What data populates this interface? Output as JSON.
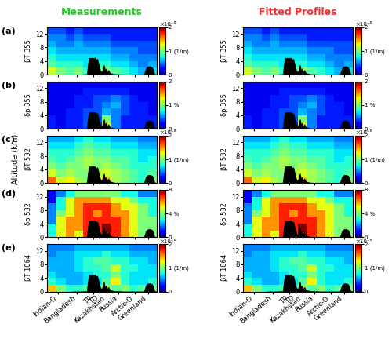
{
  "chart_data": {
    "type": "heatmap",
    "column_titles": [
      {
        "text": "Measurements",
        "color": "#22cc22"
      },
      {
        "text": "Fitted Profiles",
        "color": "#ff2a2a"
      }
    ],
    "ylabel": "Altitude (km)",
    "xlim": [
      0,
      100
    ],
    "xticks": [
      {
        "value": 10,
        "label": "Indian-O"
      },
      {
        "value": 27,
        "label": "Bangladesh"
      },
      {
        "value": 42,
        "label": "TP"
      },
      {
        "value": 48,
        "label": "TD"
      },
      {
        "value": 54,
        "label": "Kazakhstan"
      },
      {
        "value": 65,
        "label": "Russia"
      },
      {
        "value": 80,
        "label": "Arctic-O"
      },
      {
        "value": 92,
        "label": "Greenland"
      }
    ],
    "ylim": [
      0,
      14
    ],
    "yticks": [
      0,
      4,
      8,
      12
    ],
    "x_edges": [
      0,
      8,
      17,
      25,
      33,
      42,
      50,
      58,
      67,
      75,
      83,
      92,
      100
    ],
    "y_edges": [
      0,
      2,
      4,
      6,
      8,
      10,
      12,
      14
    ],
    "terrain": {
      "x": [
        0,
        10,
        20,
        25,
        30,
        36,
        37,
        38,
        44,
        45,
        46,
        47,
        48,
        49,
        50,
        51,
        52,
        53,
        54,
        55,
        56,
        57,
        58,
        60,
        62,
        64,
        70,
        80,
        88,
        89,
        90,
        92,
        94,
        96,
        97,
        98,
        100
      ],
      "height": [
        0,
        0,
        0,
        0.1,
        0.1,
        0.2,
        3.0,
        5.0,
        5.0,
        4.5,
        4.8,
        3.5,
        2.0,
        1.0,
        1.0,
        2.5,
        3.0,
        1.5,
        2.0,
        1.0,
        1.5,
        0.8,
        0.5,
        0.3,
        0.2,
        0.2,
        0.1,
        0.1,
        0.1,
        1.0,
        2.0,
        2.5,
        2.5,
        2.2,
        1.5,
        0.3,
        0
      ]
    },
    "panels": [
      {
        "letter": "(a)",
        "label": "βT 355",
        "clim": [
          0,
          2
        ],
        "colorbar_ticks": [
          0,
          {
            "value": 1,
            "label": "1 (1/m)"
          },
          2
        ],
        "colorbar_label": "×10⁻⁶",
        "cells": [
          [
            1.2,
            1.0,
            0.9,
            1.0,
            0.8,
            0.9,
            1.0,
            0.9,
            0.8,
            0.7,
            0.6,
            0.7
          ],
          [
            0.9,
            0.8,
            0.8,
            0.8,
            0.7,
            0.8,
            0.8,
            0.7,
            0.7,
            0.6,
            0.5,
            0.6
          ],
          [
            0.8,
            0.7,
            0.7,
            0.7,
            0.7,
            0.7,
            0.7,
            0.6,
            0.6,
            0.5,
            0.5,
            0.5
          ],
          [
            0.7,
            0.6,
            0.6,
            0.6,
            0.6,
            0.6,
            0.6,
            0.5,
            0.5,
            0.5,
            0.4,
            0.4
          ],
          [
            0.6,
            0.5,
            0.5,
            0.6,
            0.5,
            0.5,
            0.5,
            0.4,
            0.4,
            0.4,
            0.4,
            0.4
          ],
          [
            0.5,
            0.5,
            0.4,
            0.5,
            0.4,
            0.4,
            0.4,
            0.3,
            0.3,
            0.3,
            0.3,
            0.3
          ],
          [
            0.4,
            0.4,
            0.3,
            0.4,
            0.3,
            0.3,
            0.3,
            0.3,
            0.3,
            0.3,
            0.3,
            0.3
          ]
        ]
      },
      {
        "letter": "(b)",
        "label": "δp 355",
        "clim": [
          0,
          2
        ],
        "colorbar_ticks": [
          0,
          {
            "value": 1,
            "label": "1 %"
          },
          2
        ],
        "cells": [
          [
            0.3,
            0.2,
            0.3,
            0.3,
            0.4,
            0.3,
            1.2,
            0.5,
            0.3,
            0.3,
            0.3,
            0.3
          ],
          [
            0.3,
            0.2,
            0.3,
            0.3,
            0.4,
            0.4,
            1.0,
            0.5,
            0.3,
            0.3,
            0.3,
            0.3
          ],
          [
            0.2,
            0.2,
            0.3,
            0.3,
            0.4,
            0.4,
            0.6,
            0.5,
            0.4,
            0.3,
            0.3,
            0.2
          ],
          [
            0.2,
            0.2,
            0.2,
            0.3,
            0.3,
            0.4,
            0.5,
            0.6,
            0.4,
            0.3,
            0.3,
            0.2
          ],
          [
            0.2,
            0.2,
            0.2,
            0.3,
            0.3,
            0.4,
            0.4,
            0.5,
            0.4,
            0.3,
            0.2,
            0.2
          ],
          [
            0.2,
            0.2,
            0.2,
            0.2,
            0.3,
            0.3,
            0.3,
            0.3,
            0.3,
            0.2,
            0.2,
            0.2
          ],
          [
            0.2,
            0.2,
            0.2,
            0.2,
            0.2,
            0.2,
            0.2,
            0.2,
            0.2,
            0.2,
            0.2,
            0.2
          ]
        ]
      },
      {
        "letter": "(c)",
        "label": "βT 532",
        "clim": [
          0,
          2
        ],
        "colorbar_ticks": [
          0,
          {
            "value": 1,
            "label": "1 (1/m)"
          },
          2
        ],
        "colorbar_label": "×10⁻⁶",
        "cells": [
          [
            1.6,
            1.2,
            1.3,
            1.1,
            1.0,
            1.2,
            1.4,
            1.1,
            1.0,
            0.9,
            0.8,
            1.0
          ],
          [
            1.2,
            1.0,
            1.1,
            1.0,
            1.0,
            1.1,
            1.2,
            1.1,
            1.0,
            0.9,
            0.8,
            0.9
          ],
          [
            1.0,
            0.9,
            1.0,
            1.0,
            1.1,
            1.0,
            1.1,
            1.0,
            0.9,
            0.8,
            0.8,
            0.8
          ],
          [
            0.9,
            0.8,
            0.9,
            1.0,
            1.1,
            1.0,
            1.0,
            0.9,
            0.9,
            0.8,
            0.7,
            0.8
          ],
          [
            0.8,
            0.8,
            0.8,
            0.9,
            1.0,
            0.9,
            0.9,
            0.8,
            0.8,
            0.8,
            0.7,
            0.7
          ],
          [
            0.7,
            0.7,
            0.7,
            0.8,
            0.9,
            0.8,
            0.8,
            0.7,
            0.7,
            0.7,
            0.6,
            0.6
          ],
          [
            0.6,
            0.6,
            0.6,
            0.7,
            0.8,
            0.7,
            0.7,
            0.6,
            0.6,
            0.6,
            0.5,
            0.5
          ]
        ]
      },
      {
        "letter": "(d)",
        "label": "δp 532",
        "clim": [
          0,
          8
        ],
        "colorbar_ticks": [
          0,
          {
            "value": 4,
            "label": "4 %"
          },
          8
        ],
        "cells": [
          [
            3,
            5,
            6,
            5,
            7,
            7,
            8,
            7,
            6,
            5,
            4,
            4
          ],
          [
            3,
            5,
            6,
            6,
            7,
            7,
            8,
            7,
            6,
            5,
            4,
            4
          ],
          [
            2,
            5,
            6,
            6,
            7,
            7,
            7,
            7,
            6,
            5,
            4,
            4
          ],
          [
            2,
            4,
            5,
            6,
            7,
            6,
            7,
            6,
            6,
            5,
            4,
            3
          ],
          [
            2,
            3,
            5,
            6,
            7,
            7,
            7,
            6,
            5,
            5,
            4,
            3
          ],
          [
            1,
            3,
            5,
            6,
            6,
            6,
            6,
            5,
            5,
            4,
            3,
            3
          ],
          [
            1,
            2,
            3,
            4,
            4,
            4,
            4,
            4,
            3,
            3,
            2,
            2
          ]
        ]
      },
      {
        "letter": "(e)",
        "label": "βT 1064",
        "clim": [
          0,
          2
        ],
        "colorbar_ticks": [
          0,
          {
            "value": 1,
            "label": "1 (1/m)"
          },
          2
        ],
        "colorbar_label": "×10⁻⁶",
        "cells": [
          [
            1.4,
            1.0,
            0.8,
            0.8,
            0.9,
            0.8,
            1.1,
            0.9,
            1.0,
            0.8,
            0.9,
            1.0
          ],
          [
            0.8,
            0.7,
            0.6,
            0.6,
            0.7,
            0.7,
            0.9,
            1.3,
            0.8,
            0.7,
            0.7,
            0.8
          ],
          [
            0.7,
            0.6,
            0.6,
            0.6,
            0.7,
            0.8,
            0.8,
            1.0,
            0.8,
            0.7,
            0.7,
            0.7
          ],
          [
            0.6,
            0.6,
            0.6,
            0.7,
            0.8,
            0.8,
            0.9,
            1.2,
            0.8,
            0.8,
            0.7,
            0.7
          ],
          [
            0.6,
            0.6,
            0.6,
            0.7,
            0.8,
            0.9,
            0.9,
            0.8,
            0.8,
            0.7,
            0.7,
            0.6
          ],
          [
            0.5,
            0.6,
            0.6,
            0.7,
            0.7,
            0.7,
            0.8,
            0.7,
            0.7,
            0.6,
            0.6,
            0.6
          ],
          [
            0.5,
            0.5,
            0.5,
            0.6,
            0.6,
            0.6,
            0.6,
            0.6,
            0.6,
            0.5,
            0.5,
            0.5
          ]
        ]
      }
    ]
  }
}
